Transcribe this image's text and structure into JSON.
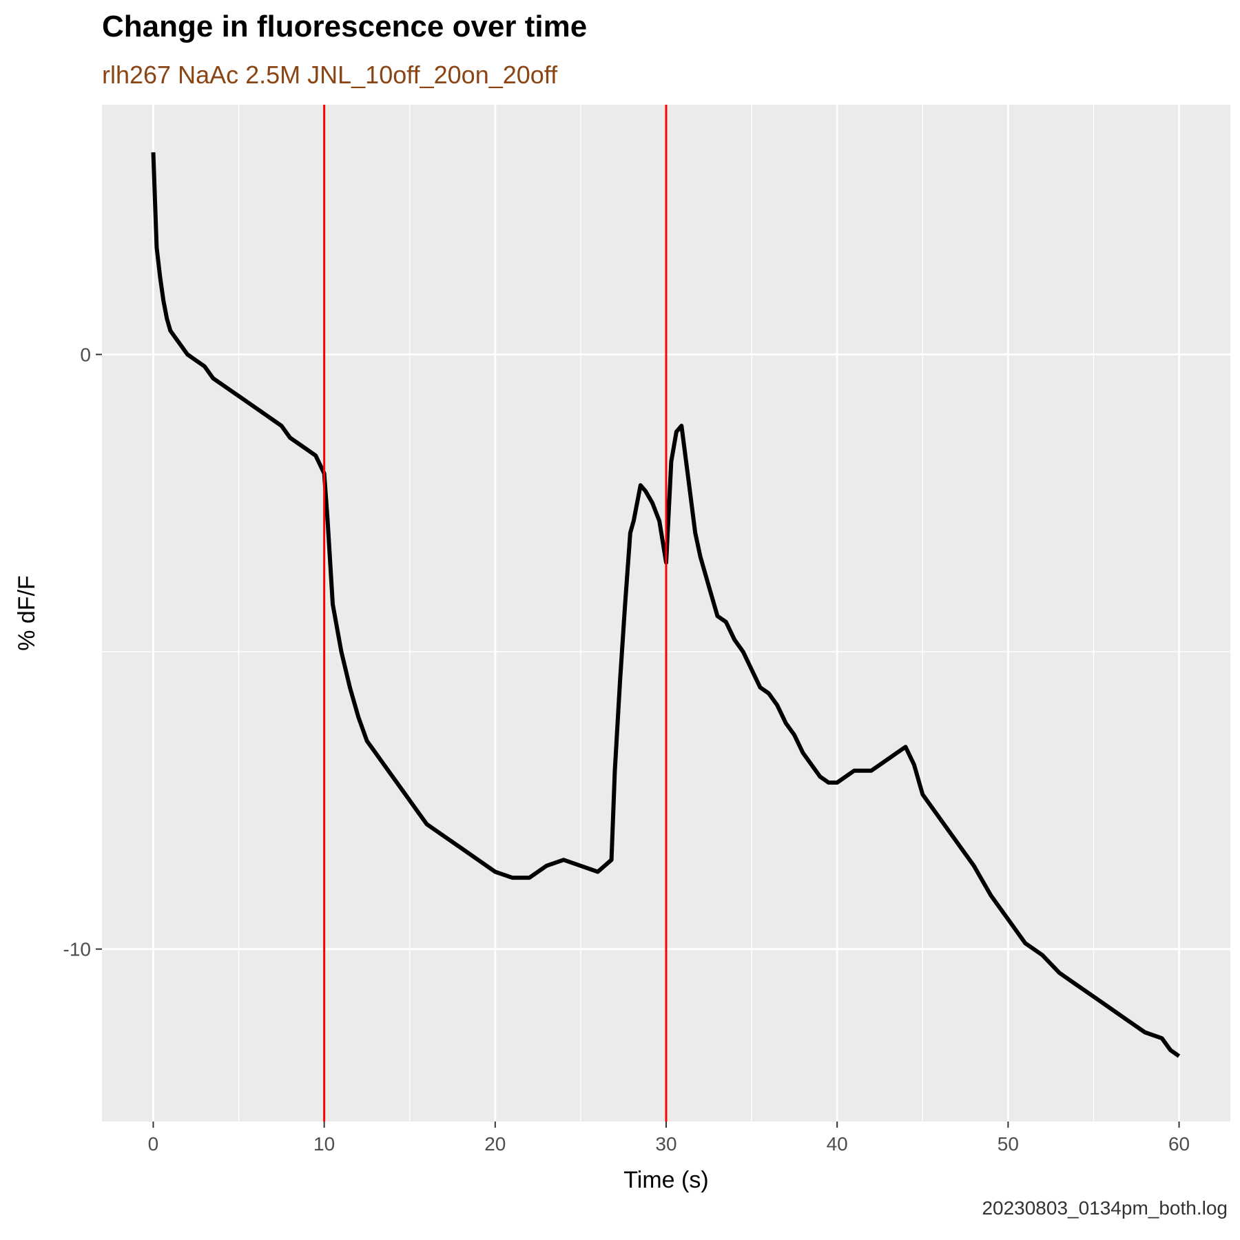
{
  "chart_data": {
    "type": "line",
    "title": "Change in fluorescence over time",
    "subtitle": "rlh267 NaAc 2.5M JNL_10off_20on_20off",
    "caption": "20230803_0134pm_both.log",
    "xlabel": "Time (s)",
    "ylabel": "% dF/F",
    "xlim": [
      -3,
      63
    ],
    "ylim": [
      -12.9,
      4.2
    ],
    "x_ticks": [
      0,
      10,
      20,
      30,
      40,
      50,
      60
    ],
    "y_ticks": [
      0,
      -10
    ],
    "grid": true,
    "colors": {
      "panel": "#EBEBEB",
      "grid": "#FFFFFF",
      "line": "#000000",
      "vline": "#FF0000",
      "subtitle": "#8B4513"
    },
    "vlines": [
      10,
      30
    ],
    "series": [
      {
        "x": [
          0.0,
          0.2,
          0.4,
          0.6,
          0.8,
          1.0,
          1.5,
          2.0,
          2.5,
          3.0,
          3.5,
          4.0,
          4.5,
          5.0,
          5.5,
          6.0,
          6.5,
          7.0,
          7.5,
          8.0,
          8.5,
          9.0,
          9.5,
          10.0,
          10.2,
          10.5,
          11.0,
          11.5,
          12.0,
          12.5,
          13.0,
          13.5,
          14.0,
          14.5,
          15.0,
          15.5,
          16.0,
          17.0,
          18.0,
          19.0,
          20.0,
          21.0,
          22.0,
          23.0,
          24.0,
          25.0,
          26.0,
          26.8,
          27.0,
          27.3,
          27.6,
          27.9,
          28.1,
          28.5,
          28.8,
          29.2,
          29.6,
          30.0,
          30.3,
          30.6,
          30.9,
          31.3,
          31.7,
          32.0,
          32.5,
          33.0,
          33.5,
          34.0,
          34.5,
          35.0,
          35.5,
          36.0,
          36.5,
          37.0,
          37.5,
          38.0,
          38.5,
          39.0,
          39.5,
          40.0,
          41.0,
          42.0,
          43.0,
          43.5,
          44.0,
          44.5,
          45.0,
          46.0,
          47.0,
          48.0,
          49.0,
          50.0,
          51.0,
          52.0,
          53.0,
          54.0,
          55.0,
          56.0,
          57.0,
          58.0,
          59.0,
          59.5,
          60.0
        ],
        "y": [
          3.4,
          1.8,
          1.3,
          0.9,
          0.6,
          0.4,
          0.2,
          0.0,
          -0.1,
          -0.2,
          -0.4,
          -0.5,
          -0.6,
          -0.7,
          -0.8,
          -0.9,
          -1.0,
          -1.1,
          -1.2,
          -1.4,
          -1.5,
          -1.6,
          -1.7,
          -2.0,
          -2.8,
          -4.2,
          -5.0,
          -5.6,
          -6.1,
          -6.5,
          -6.7,
          -6.9,
          -7.1,
          -7.3,
          -7.5,
          -7.7,
          -7.9,
          -8.1,
          -8.3,
          -8.5,
          -8.7,
          -8.8,
          -8.8,
          -8.6,
          -8.5,
          -8.6,
          -8.7,
          -8.5,
          -7.0,
          -5.5,
          -4.2,
          -3.0,
          -2.8,
          -2.2,
          -2.3,
          -2.5,
          -2.8,
          -3.5,
          -1.8,
          -1.3,
          -1.2,
          -2.1,
          -3.0,
          -3.4,
          -3.9,
          -4.4,
          -4.5,
          -4.8,
          -5.0,
          -5.3,
          -5.6,
          -5.7,
          -5.9,
          -6.2,
          -6.4,
          -6.7,
          -6.9,
          -7.1,
          -7.2,
          -7.2,
          -7.0,
          -7.0,
          -6.8,
          -6.7,
          -6.6,
          -6.9,
          -7.4,
          -7.8,
          -8.2,
          -8.6,
          -9.1,
          -9.5,
          -9.9,
          -10.1,
          -10.4,
          -10.6,
          -10.8,
          -11.0,
          -11.2,
          -11.4,
          -11.5,
          -11.7,
          -11.8
        ]
      }
    ]
  }
}
